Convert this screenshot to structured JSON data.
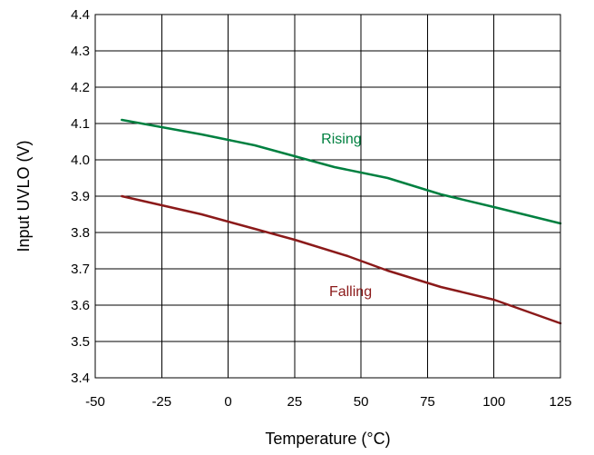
{
  "chart_data": {
    "type": "line",
    "title": "",
    "xlabel": "Temperature (°C)",
    "ylabel": "Input UVLO (V)",
    "xlim": [
      -50,
      125
    ],
    "ylim": [
      3.4,
      4.4
    ],
    "x_ticks": [
      "-50",
      "-25",
      "0",
      "25",
      "50",
      "75",
      "100",
      "125"
    ],
    "y_ticks": [
      "3.4",
      "3.5",
      "3.6",
      "3.7",
      "3.8",
      "3.9",
      "4.0",
      "4.1",
      "4.2",
      "4.3",
      "4.4"
    ],
    "grid": true,
    "series": [
      {
        "name": "Rising",
        "color": "#008040",
        "x": [
          -40,
          -25,
          -10,
          10,
          25,
          40,
          60,
          80,
          100,
          125
        ],
        "y": [
          4.11,
          4.09,
          4.07,
          4.04,
          4.01,
          3.98,
          3.95,
          3.905,
          3.87,
          3.825
        ]
      },
      {
        "name": "Falling",
        "color": "#8B1A1A",
        "x": [
          -40,
          -25,
          -10,
          10,
          25,
          45,
          60,
          80,
          100,
          125
        ],
        "y": [
          3.9,
          3.875,
          3.85,
          3.81,
          3.78,
          3.735,
          3.695,
          3.65,
          3.615,
          3.55
        ]
      }
    ]
  }
}
